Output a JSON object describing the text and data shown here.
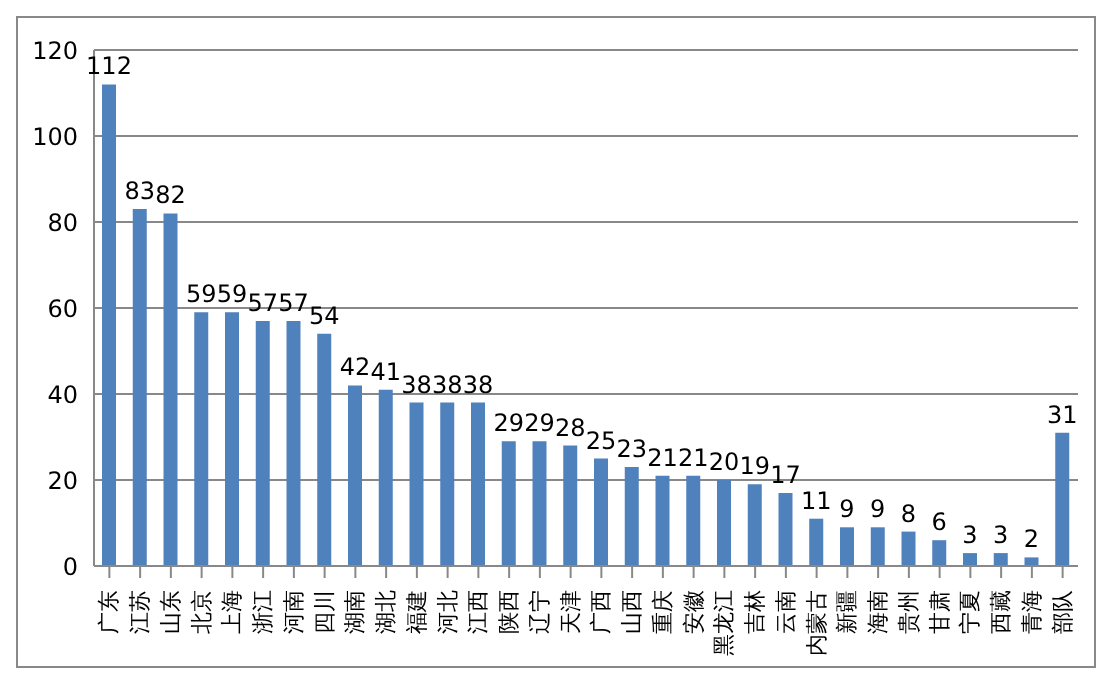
{
  "chart_data": {
    "type": "bar",
    "categories": [
      "广东",
      "江苏",
      "山东",
      "北京",
      "上海",
      "浙江",
      "河南",
      "四川",
      "湖南",
      "湖北",
      "福建",
      "河北",
      "江西",
      "陕西",
      "辽宁",
      "天津",
      "广西",
      "山西",
      "重庆",
      "安徽",
      "黑龙江",
      "吉林",
      "云南",
      "内蒙古",
      "新疆",
      "海南",
      "贵州",
      "甘肃",
      "宁夏",
      "西藏",
      "青海",
      "部队"
    ],
    "values": [
      112,
      83,
      82,
      59,
      59,
      57,
      57,
      54,
      42,
      41,
      38,
      38,
      38,
      29,
      29,
      28,
      25,
      23,
      21,
      21,
      20,
      19,
      17,
      11,
      9,
      9,
      8,
      6,
      3,
      3,
      2,
      31
    ],
    "color": "#4f81bd",
    "ylim": [
      0,
      120
    ],
    "yticks": [
      0,
      20,
      40,
      60,
      80,
      100,
      120
    ],
    "grid": "y",
    "data_labels": true,
    "legend": false
  }
}
